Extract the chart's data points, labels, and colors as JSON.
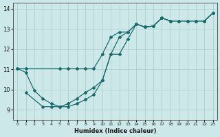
{
  "xlabel": "Humidex (Indice chaleur)",
  "ylabel": "",
  "bg_color": "#cce8e8",
  "grid_color": "#aacccc",
  "line_color": "#1a6b6b",
  "xlim": [
    -0.5,
    23.5
  ],
  "ylim": [
    8.5,
    14.3
  ],
  "xticks": [
    0,
    1,
    2,
    3,
    4,
    5,
    6,
    7,
    8,
    9,
    10,
    11,
    12,
    13,
    14,
    15,
    16,
    17,
    18,
    19,
    20,
    21,
    22,
    23
  ],
  "yticks": [
    9,
    10,
    11,
    12,
    13,
    14
  ],
  "line1_x": [
    0,
    1,
    2,
    3,
    4,
    5,
    6,
    7,
    8,
    9,
    10,
    11,
    12,
    13,
    14,
    15,
    16,
    17,
    18,
    19,
    20,
    21,
    22,
    23
  ],
  "line1_y": [
    11.05,
    10.85,
    9.95,
    9.55,
    9.3,
    9.15,
    9.15,
    9.3,
    9.5,
    9.75,
    10.45,
    11.75,
    12.6,
    12.85,
    13.25,
    13.1,
    13.15,
    13.55,
    13.4,
    13.4,
    13.4,
    13.4,
    13.4,
    13.8
  ],
  "line2_x": [
    0,
    1,
    5,
    6,
    7,
    8,
    9,
    10,
    11,
    12,
    13,
    14,
    15,
    16,
    17,
    18,
    19,
    20,
    21,
    22,
    23
  ],
  "line2_y": [
    11.05,
    11.05,
    11.05,
    11.05,
    11.05,
    11.05,
    11.05,
    11.75,
    12.6,
    12.85,
    12.85,
    13.25,
    13.1,
    13.15,
    13.55,
    13.4,
    13.4,
    13.4,
    13.4,
    13.4,
    13.8
  ],
  "line3_x": [
    1,
    3,
    4,
    5,
    6,
    7,
    8,
    9,
    10,
    11,
    12,
    13,
    14,
    15,
    16,
    17,
    18,
    19,
    20,
    21,
    22,
    23
  ],
  "line3_y": [
    9.85,
    9.15,
    9.15,
    9.15,
    9.3,
    9.55,
    9.85,
    10.1,
    10.45,
    11.75,
    11.75,
    12.5,
    13.25,
    13.1,
    13.15,
    13.55,
    13.4,
    13.4,
    13.4,
    13.4,
    13.4,
    13.8
  ]
}
